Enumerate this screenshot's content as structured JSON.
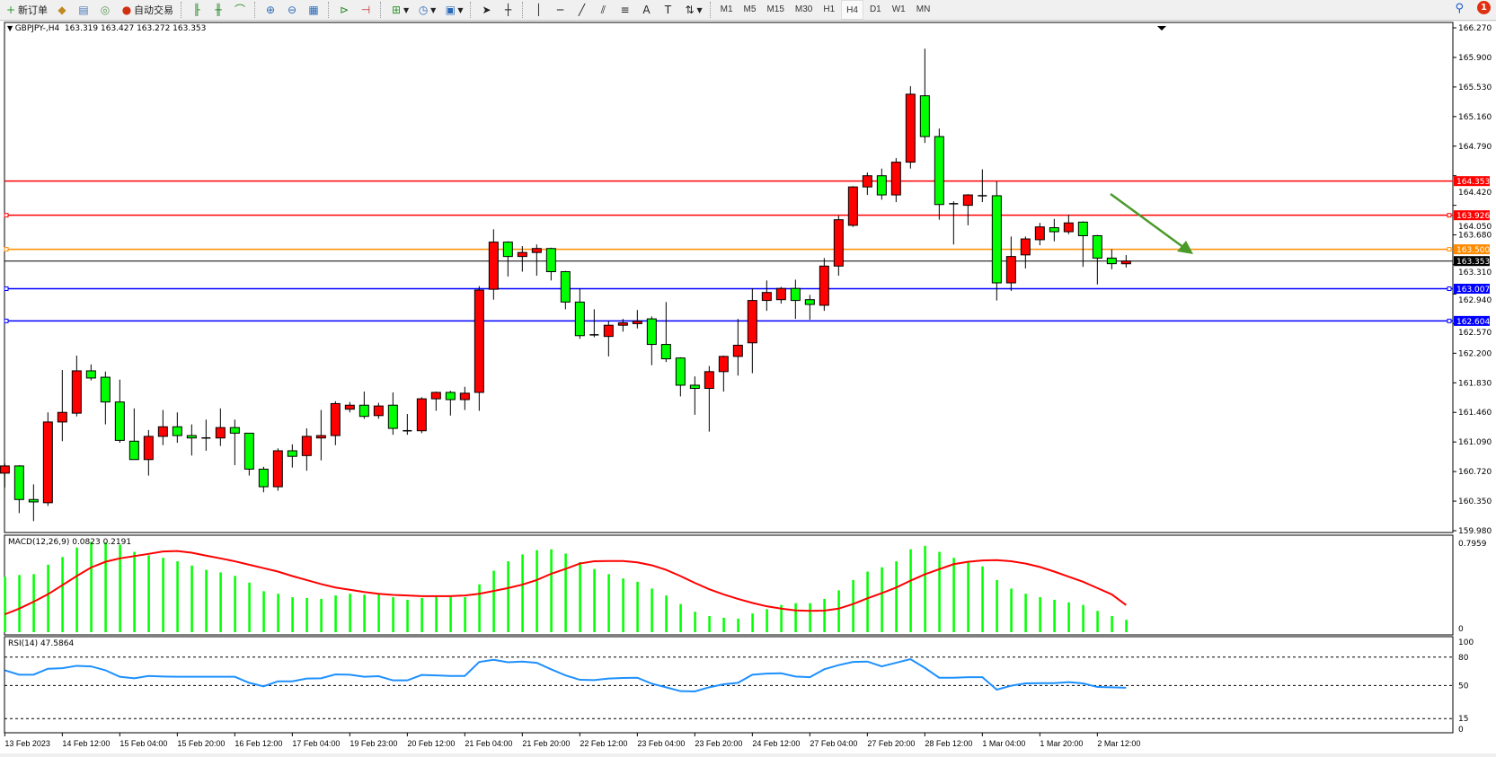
{
  "toolbar": {
    "new_order": "新订单",
    "auto_trading": "自动交易",
    "timeframes": [
      "M1",
      "M5",
      "M15",
      "M30",
      "H1",
      "H4",
      "D1",
      "W1",
      "MN"
    ],
    "active_timeframe": "H4",
    "notification_count": "1",
    "icons": [
      "metaeditor-icon",
      "navigator-icon",
      "signal-icon",
      "bar-chart-icon",
      "candlestick-icon",
      "line-chart-icon",
      "zoom-in-icon",
      "zoom-out-icon",
      "tile-windows-icon",
      "auto-scroll-icon",
      "chart-shift-icon",
      "indicators-icon",
      "periods-icon",
      "templates-icon",
      "cursor-icon",
      "crosshair-icon",
      "vertical-line-icon",
      "horizontal-line-icon",
      "trendline-icon",
      "fibonacci-icon",
      "text-icon",
      "text-label-icon",
      "arrows-icon",
      "search-icon",
      "notification-icon"
    ]
  },
  "chart": {
    "header": "GBPJPY-,H4  163.319 163.427 163.272 163.353",
    "macd_label": "MACD(12,26,9) 0.0823 0.2191",
    "rsi_label": "RSI(14) 47.5864"
  },
  "chart_data": {
    "type": "candlestick",
    "symbol": "GBPJPY-",
    "timeframe": "H4",
    "colors": {
      "bull": "#ff0000",
      "bear": "#00ff00",
      "macd_hist": "#00ff00",
      "macd_signal": "#ff0000",
      "rsi": "#1e90ff",
      "trend_arrow": "#4a9a2a"
    },
    "price_range": [
      159.98,
      166.27
    ],
    "price_ticks": [
      "166.270",
      "165.900",
      "165.530",
      "165.160",
      "164.790",
      "164.420",
      "164.050",
      "163.680",
      "163.310",
      "162.940",
      "162.570",
      "162.200",
      "161.830",
      "161.460",
      "161.090",
      "160.720",
      "160.350",
      "159.980"
    ],
    "time_labels": [
      "13 Feb 2023",
      "14 Feb 12:00",
      "15 Feb 04:00",
      "15 Feb 20:00",
      "16 Feb 12:00",
      "17 Feb 04:00",
      "19 Feb 23:00",
      "20 Feb 12:00",
      "21 Feb 04:00",
      "21 Feb 20:00",
      "22 Feb 12:00",
      "23 Feb 04:00",
      "23 Feb 20:00",
      "24 Feb 12:00",
      "27 Feb 04:00",
      "27 Feb 20:00",
      "28 Feb 12:00",
      "1 Mar 04:00",
      "1 Mar 20:00",
      "2 Mar 12:00"
    ],
    "ohlc": [
      [
        160.7,
        160.82,
        160.52,
        160.79
      ],
      [
        160.79,
        160.8,
        160.2,
        160.37
      ],
      [
        160.37,
        160.56,
        160.1,
        160.34
      ],
      [
        160.33,
        161.46,
        160.29,
        161.34
      ],
      [
        161.34,
        161.99,
        161.1,
        161.46
      ],
      [
        161.45,
        162.17,
        161.41,
        161.98
      ],
      [
        161.98,
        162.06,
        161.86,
        161.89
      ],
      [
        161.9,
        161.97,
        161.31,
        161.59
      ],
      [
        161.59,
        161.87,
        161.08,
        161.11
      ],
      [
        161.1,
        161.51,
        160.87,
        160.87
      ],
      [
        160.87,
        161.24,
        160.67,
        161.16
      ],
      [
        161.16,
        161.49,
        161.05,
        161.28
      ],
      [
        161.28,
        161.46,
        161.08,
        161.17
      ],
      [
        161.17,
        161.31,
        160.92,
        161.14
      ],
      [
        161.14,
        161.37,
        160.98,
        161.14
      ],
      [
        161.14,
        161.51,
        161.04,
        161.27
      ],
      [
        161.27,
        161.37,
        160.8,
        161.2
      ],
      [
        161.2,
        161.2,
        160.67,
        160.75
      ],
      [
        160.75,
        160.78,
        160.46,
        160.53
      ],
      [
        160.53,
        161.01,
        160.48,
        160.98
      ],
      [
        160.98,
        161.06,
        160.77,
        160.91
      ],
      [
        160.92,
        161.26,
        160.73,
        161.16
      ],
      [
        161.14,
        161.49,
        160.86,
        161.17
      ],
      [
        161.17,
        161.6,
        161.05,
        161.57
      ],
      [
        161.5,
        161.59,
        161.46,
        161.55
      ],
      [
        161.55,
        161.72,
        161.38,
        161.41
      ],
      [
        161.42,
        161.58,
        161.38,
        161.54
      ],
      [
        161.55,
        161.71,
        161.18,
        161.26
      ],
      [
        161.23,
        161.44,
        161.18,
        161.23
      ],
      [
        161.23,
        161.65,
        161.2,
        161.63
      ],
      [
        161.63,
        161.72,
        161.48,
        161.71
      ],
      [
        161.71,
        161.73,
        161.42,
        161.62
      ],
      [
        161.62,
        161.78,
        161.49,
        161.7
      ],
      [
        161.71,
        163.04,
        161.48,
        162.99
      ],
      [
        163.0,
        163.75,
        162.87,
        163.59
      ],
      [
        163.59,
        163.6,
        163.16,
        163.41
      ],
      [
        163.41,
        163.54,
        163.22,
        163.46
      ],
      [
        163.46,
        163.56,
        163.17,
        163.51
      ],
      [
        163.51,
        163.52,
        163.11,
        163.22
      ],
      [
        163.22,
        163.23,
        162.75,
        162.84
      ],
      [
        162.84,
        163.01,
        162.38,
        162.42
      ],
      [
        162.43,
        162.75,
        162.4,
        162.42
      ],
      [
        162.41,
        162.6,
        162.16,
        162.55
      ],
      [
        162.55,
        162.63,
        162.47,
        162.58
      ],
      [
        162.57,
        162.74,
        162.51,
        162.6
      ],
      [
        162.63,
        162.66,
        162.05,
        162.31
      ],
      [
        162.31,
        162.84,
        162.09,
        162.13
      ],
      [
        162.14,
        162.15,
        161.66,
        161.8
      ],
      [
        161.8,
        161.91,
        161.43,
        161.76
      ],
      [
        161.76,
        162.04,
        161.22,
        161.97
      ],
      [
        161.97,
        162.17,
        161.72,
        162.16
      ],
      [
        162.16,
        162.63,
        161.92,
        162.3
      ],
      [
        162.33,
        163.01,
        161.95,
        162.86
      ],
      [
        162.86,
        163.11,
        162.73,
        162.96
      ],
      [
        162.87,
        163.03,
        162.82,
        163.01
      ],
      [
        163.01,
        163.12,
        162.63,
        162.86
      ],
      [
        162.87,
        162.93,
        162.62,
        162.81
      ],
      [
        162.8,
        163.39,
        162.73,
        163.29
      ],
      [
        163.29,
        163.92,
        163.17,
        163.87
      ],
      [
        163.8,
        164.29,
        163.78,
        164.28
      ],
      [
        164.28,
        164.46,
        164.18,
        164.42
      ],
      [
        164.42,
        164.51,
        164.12,
        164.18
      ],
      [
        164.18,
        164.64,
        164.09,
        164.59
      ],
      [
        164.59,
        165.54,
        164.51,
        165.44
      ],
      [
        165.42,
        166.01,
        164.83,
        164.91
      ],
      [
        164.91,
        165.01,
        163.87,
        164.06
      ],
      [
        164.07,
        164.1,
        163.56,
        164.06
      ],
      [
        164.05,
        164.19,
        163.8,
        164.18
      ],
      [
        164.17,
        164.5,
        164.09,
        164.17
      ],
      [
        164.17,
        164.35,
        162.86,
        163.08
      ],
      [
        163.08,
        163.66,
        162.98,
        163.41
      ],
      [
        163.43,
        163.66,
        163.26,
        163.63
      ],
      [
        163.62,
        163.83,
        163.55,
        163.78
      ],
      [
        163.77,
        163.88,
        163.6,
        163.72
      ],
      [
        163.72,
        163.93,
        163.69,
        163.83
      ],
      [
        163.84,
        163.85,
        163.28,
        163.67
      ],
      [
        163.67,
        163.68,
        163.06,
        163.39
      ],
      [
        163.39,
        163.5,
        163.25,
        163.32
      ],
      [
        163.319,
        163.427,
        163.272,
        163.353
      ]
    ],
    "levels": [
      {
        "price": "164.353",
        "color": "#ff0000"
      },
      {
        "price": "163.926",
        "color": "#ff0000"
      },
      {
        "price": "163.500",
        "color": "#ff8c00"
      },
      {
        "price": "163.353",
        "color": "#000000",
        "bid": true
      },
      {
        "price": "163.007",
        "color": "#0000ff"
      },
      {
        "price": "162.604",
        "color": "#0000ff"
      }
    ],
    "macd": {
      "params": "12,26,9",
      "axis_max": "0.7959",
      "axis_min": "0",
      "histogram": [
        0.484,
        0.5,
        0.508,
        0.596,
        0.668,
        0.756,
        0.809,
        0.804,
        0.783,
        0.716,
        0.684,
        0.66,
        0.628,
        0.588,
        0.548,
        0.524,
        0.492,
        0.429,
        0.349,
        0.325,
        0.293,
        0.285,
        0.277,
        0.309,
        0.325,
        0.317,
        0.325,
        0.293,
        0.269,
        0.285,
        0.301,
        0.293,
        0.293,
        0.413,
        0.54,
        0.628,
        0.692,
        0.732,
        0.74,
        0.7,
        0.62,
        0.556,
        0.508,
        0.468,
        0.437,
        0.373,
        0.309,
        0.229,
        0.157,
        0.117,
        0.101,
        0.093,
        0.141,
        0.181,
        0.221,
        0.237,
        0.237,
        0.277,
        0.357,
        0.453,
        0.532,
        0.572,
        0.628,
        0.74,
        0.772,
        0.716,
        0.66,
        0.62,
        0.58,
        0.453,
        0.373,
        0.325,
        0.293,
        0.269,
        0.245,
        0.221,
        0.165,
        0.117,
        0.0823
      ],
      "signal": [
        0.133,
        0.186,
        0.25,
        0.32,
        0.405,
        0.49,
        0.57,
        0.623,
        0.655,
        0.676,
        0.697,
        0.719,
        0.724,
        0.708,
        0.681,
        0.655,
        0.628,
        0.596,
        0.564,
        0.532,
        0.49,
        0.453,
        0.415,
        0.383,
        0.362,
        0.341,
        0.325,
        0.314,
        0.309,
        0.303,
        0.303,
        0.303,
        0.309,
        0.325,
        0.351,
        0.378,
        0.41,
        0.453,
        0.511,
        0.557,
        0.607,
        0.628,
        0.63,
        0.63,
        0.618,
        0.591,
        0.548,
        0.49,
        0.426,
        0.367,
        0.319,
        0.277,
        0.24,
        0.208,
        0.186,
        0.17,
        0.165,
        0.168,
        0.186,
        0.229,
        0.282,
        0.33,
        0.383,
        0.447,
        0.506,
        0.554,
        0.601,
        0.623,
        0.636,
        0.639,
        0.628,
        0.607,
        0.575,
        0.532,
        0.484,
        0.437,
        0.378,
        0.319,
        0.2191
      ]
    },
    "rsi": {
      "period": 14,
      "levels": [
        "80",
        "50",
        "15"
      ],
      "axis_labels": [
        "100",
        "80",
        "50",
        "15",
        "0"
      ],
      "values": [
        66.1,
        61.4,
        61.4,
        67.7,
        68.3,
        70.8,
        70.2,
        66.1,
        59.2,
        57.6,
        60.1,
        59.5,
        59.2,
        59.2,
        59.2,
        59.2,
        59.2,
        52.8,
        49.1,
        54.4,
        54.4,
        57.3,
        57.6,
        61.7,
        61.4,
        59.2,
        59.8,
        55.4,
        55.4,
        61.1,
        60.7,
        60.1,
        60.1,
        74.9,
        77.2,
        74.6,
        75.3,
        74.0,
        67.1,
        60.7,
        56.0,
        55.7,
        57.3,
        57.9,
        58.2,
        51.9,
        48.1,
        44.0,
        43.7,
        48.1,
        51.3,
        52.8,
        61.4,
        62.6,
        62.9,
        59.5,
        58.8,
        67.1,
        71.5,
        74.9,
        75.3,
        70.2,
        74.0,
        77.8,
        68.6,
        58.2,
        58.2,
        58.8,
        58.8,
        45.6,
        49.7,
        52.2,
        52.5,
        52.5,
        53.5,
        52.2,
        48.4,
        48.1,
        47.5864
      ]
    }
  }
}
